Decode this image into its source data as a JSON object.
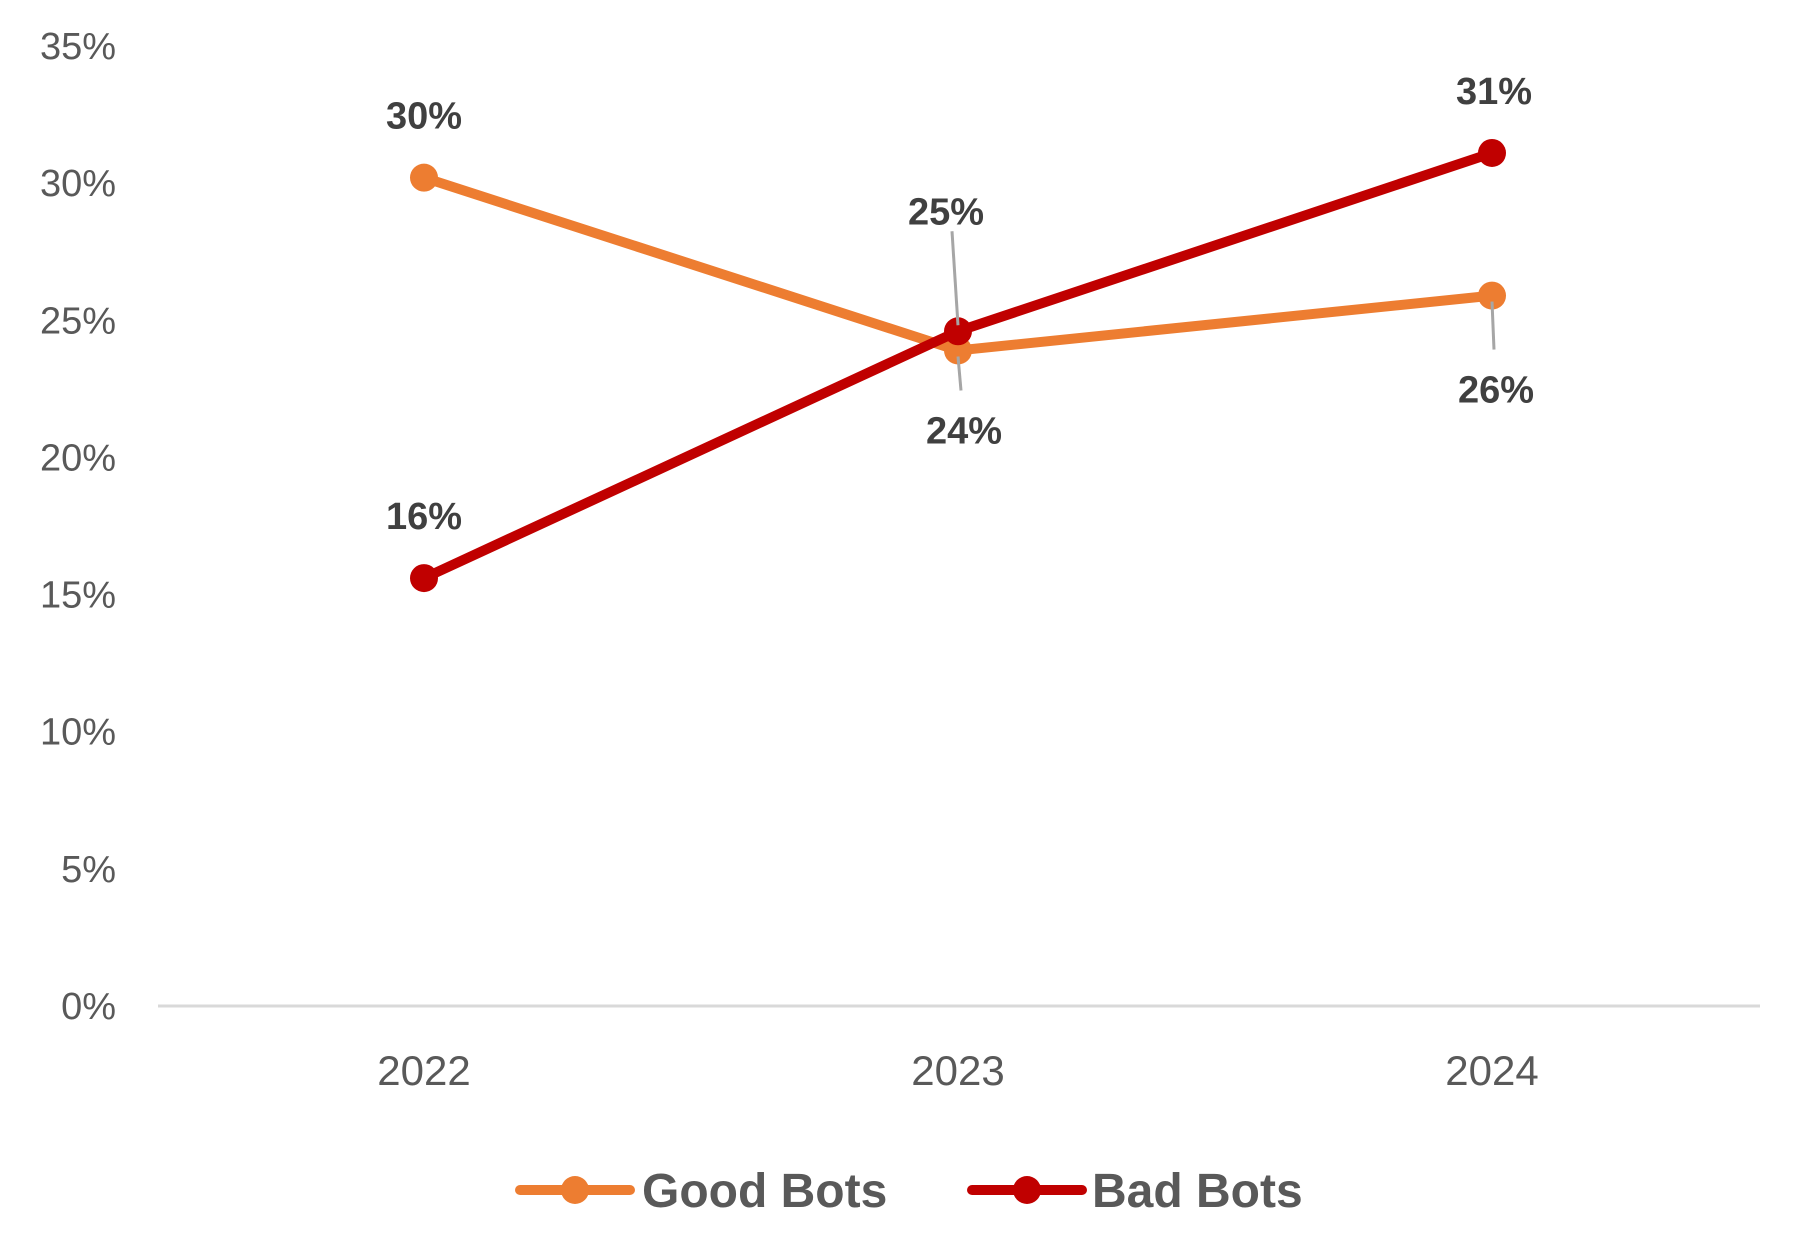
{
  "chart_data": {
    "type": "line",
    "x": [
      "2022",
      "2023",
      "2024"
    ],
    "categories": [
      "2022",
      "2023",
      "2024"
    ],
    "series": [
      {
        "name": "Good Bots",
        "values": [
          30.2,
          23.9,
          25.9
        ],
        "labels": [
          "30%",
          "24%",
          "26%"
        ],
        "color": "#ED7D31"
      },
      {
        "name": "Bad Bots",
        "values": [
          15.6,
          24.6,
          31.1
        ],
        "labels": [
          "16%",
          "25%",
          "31%"
        ],
        "color": "#C00000"
      }
    ],
    "ylim": [
      0,
      35
    ],
    "y_ticks": [
      0,
      5,
      10,
      15,
      20,
      25,
      30,
      35
    ],
    "y_tick_labels": [
      "0%",
      "5%",
      "10%",
      "15%",
      "20%",
      "25%",
      "30%",
      "35%"
    ],
    "title": "",
    "xlabel": "",
    "ylabel": "",
    "grid": false,
    "legend_position": "bottom",
    "axis_color": "#D9D9D9",
    "leader_line_color": "#A6A6A6"
  }
}
